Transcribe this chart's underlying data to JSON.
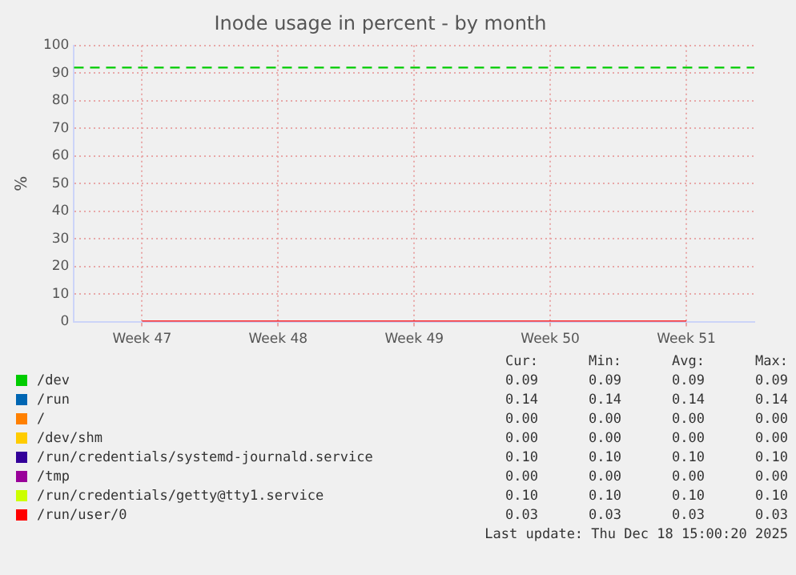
{
  "chart_data": {
    "type": "line",
    "title": "Inode usage in percent - by month",
    "ylabel": "%",
    "categories": [
      "Week 47",
      "Week 48",
      "Week 49",
      "Week 50",
      "Week 51"
    ],
    "ylim": [
      0,
      100
    ],
    "yticks": [
      0,
      10,
      20,
      30,
      40,
      50,
      60,
      70,
      80,
      90,
      100
    ],
    "grid": true,
    "legend": "bottom",
    "ref_lines": [
      {
        "axis": "y",
        "value": 92,
        "color": "#00cc00",
        "line_style": "dashed"
      }
    ],
    "annotations": [
      "Cur:",
      "Min:",
      "Avg:",
      "Max:",
      "0.09",
      "0.09",
      "0.09",
      "0.09",
      "0.14",
      "0.14",
      "0.14",
      "0.14",
      "0.00",
      "0.00",
      "0.00",
      "0.00",
      "0.00",
      "0.00",
      "0.00",
      "0.00",
      "0.10",
      "0.10",
      "0.10",
      "0.10",
      "0.00",
      "0.00",
      "0.00",
      "0.00",
      "0.10",
      "0.10",
      "0.10",
      "0.10",
      "0.03",
      "0.03",
      "0.03",
      "0.03",
      "Last update: Thu Dec 18 15:00:20 2025"
    ],
    "series": [
      {
        "name": "/dev",
        "color": "#00cc00",
        "values": [
          null,
          null,
          null,
          null,
          null
        ]
      },
      {
        "name": "/run",
        "color": "#0066b3",
        "values": [
          null,
          null,
          null,
          null,
          null
        ]
      },
      {
        "name": "/",
        "color": "#ff8000",
        "values": [
          null,
          null,
          null,
          null,
          null
        ]
      },
      {
        "name": "/dev/shm",
        "color": "#ffcc00",
        "values": [
          null,
          null,
          null,
          null,
          null
        ]
      },
      {
        "name": "/run/credentials/systemd-journald.service",
        "color": "#330099",
        "values": [
          null,
          null,
          null,
          null,
          null
        ]
      },
      {
        "name": "/tmp",
        "color": "#990099",
        "values": [
          null,
          null,
          null,
          null,
          null
        ]
      },
      {
        "name": "/run/credentials/getty@tty1.service",
        "color": "#ccff00",
        "values": [
          null,
          null,
          null,
          null,
          null
        ]
      },
      {
        "name": "/run/user/0",
        "color": "#ff0000",
        "values": [
          0.03,
          0.03,
          0.03,
          0.03,
          0.03
        ]
      }
    ]
  }
}
